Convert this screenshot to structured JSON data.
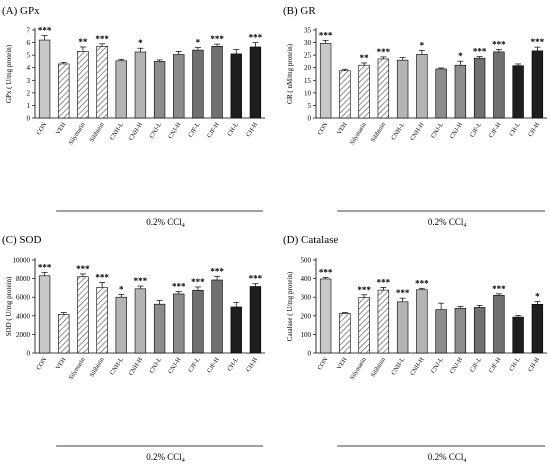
{
  "figure_caption": "0.2% CCl",
  "caption_subscript": "4",
  "chart_data": [
    {
      "type": "bar",
      "panel_label": "(A) GPx",
      "ylabel": "GPx ( U/mg protein)",
      "ylim": [
        0,
        7
      ],
      "yticks": [
        0,
        1,
        2,
        3,
        4,
        5,
        6,
        7
      ],
      "categories": [
        "CON",
        "VEH",
        "Silymarin",
        "Silibinin",
        "CNH-L",
        "CNH-H",
        "CNJ-L",
        "CNJ-H",
        "CJF-L",
        "CJF-H",
        "CH-L",
        "CH-H"
      ],
      "values": [
        6.2,
        4.3,
        5.3,
        5.7,
        4.55,
        5.25,
        4.5,
        5.05,
        5.4,
        5.7,
        5.1,
        5.65
      ],
      "errors": [
        0.35,
        0.12,
        0.35,
        0.2,
        0.12,
        0.3,
        0.12,
        0.25,
        0.2,
        0.18,
        0.35,
        0.35
      ],
      "significance": [
        "***",
        "",
        "**",
        "***",
        "",
        "*",
        "",
        "",
        "*",
        "***",
        "",
        "***"
      ],
      "group_label": "0.2% CCl"
    },
    {
      "type": "bar",
      "panel_label": "(B) GR",
      "ylabel": "GR ( nM/mg protein)",
      "ylim": [
        0,
        35
      ],
      "yticks": [
        0,
        5,
        10,
        15,
        20,
        25,
        30,
        35
      ],
      "categories": [
        "CON",
        "VEH",
        "Silymarin",
        "Silibinin",
        "CNH-L",
        "CNH-H",
        "CNJ-L",
        "CNJ-H",
        "CJF-L",
        "CJF-H",
        "CH-L",
        "CH-H"
      ],
      "values": [
        29.7,
        18.8,
        21.0,
        23.5,
        23.0,
        25.3,
        19.5,
        21.0,
        23.8,
        26.3,
        20.8,
        26.7
      ],
      "errors": [
        1.2,
        0.6,
        0.9,
        0.8,
        1.0,
        1.6,
        0.4,
        1.6,
        0.6,
        0.9,
        0.7,
        1.5
      ],
      "significance": [
        "***",
        "",
        "**",
        "***",
        "",
        "*",
        "",
        "*",
        "***",
        "***",
        "",
        "***"
      ],
      "group_label": "0.2% CCl"
    },
    {
      "type": "bar",
      "panel_label": "(C) SOD",
      "ylabel": "SOD ( U/mg protein)",
      "ylim": [
        0,
        10000
      ],
      "yticks": [
        0,
        2000,
        4000,
        6000,
        8000,
        10000
      ],
      "categories": [
        "CON",
        "VEH",
        "Silymarin",
        "Silibinin",
        "CNH-L",
        "CNH-H",
        "CNJ-L",
        "CNJ-H",
        "CJF-L",
        "CJF-H",
        "CH-L",
        "CH-H"
      ],
      "values": [
        8300,
        4150,
        8200,
        7050,
        6000,
        6900,
        5250,
        6350,
        6750,
        7850,
        4950,
        7150
      ],
      "errors": [
        350,
        200,
        300,
        550,
        300,
        300,
        400,
        250,
        350,
        400,
        500,
        300
      ],
      "significance": [
        "***",
        "",
        "***",
        "***",
        "*",
        "***",
        "",
        "***",
        "***",
        "***",
        "",
        "***"
      ],
      "group_label": "0.2% CCl"
    },
    {
      "type": "bar",
      "panel_label": "(D) Catalase",
      "ylabel": "Catalase ( U/mg protein)",
      "ylim": [
        0,
        500
      ],
      "yticks": [
        0,
        100,
        200,
        300,
        400,
        500
      ],
      "categories": [
        "CON",
        "VEH",
        "Silymarin",
        "Silibinin",
        "CNH-L",
        "CNH-H",
        "CNJ-L",
        "CNJ-H",
        "CJF-L",
        "CJF-H",
        "CH-L",
        "CH-H"
      ],
      "values": [
        398,
        213,
        298,
        338,
        275,
        340,
        233,
        240,
        245,
        310,
        193,
        262
      ],
      "errors": [
        8,
        5,
        15,
        15,
        20,
        8,
        35,
        10,
        10,
        8,
        8,
        15
      ],
      "significance": [
        "***",
        "",
        "***",
        "***",
        "***",
        "***",
        "",
        "",
        "",
        "***",
        "",
        "*"
      ],
      "group_label": "0.2% CCl"
    }
  ],
  "bar_styles": [
    {
      "fill": "#c8c8c8",
      "pattern": "none"
    },
    {
      "fill": "#ffffff",
      "pattern": "diag"
    },
    {
      "fill": "#ffffff",
      "pattern": "diag"
    },
    {
      "fill": "#ffffff",
      "pattern": "diag"
    },
    {
      "fill": "#b4b4b4",
      "pattern": "none"
    },
    {
      "fill": "#b4b4b4",
      "pattern": "none"
    },
    {
      "fill": "#8c8c8c",
      "pattern": "none"
    },
    {
      "fill": "#8c8c8c",
      "pattern": "none"
    },
    {
      "fill": "#707070",
      "pattern": "none"
    },
    {
      "fill": "#707070",
      "pattern": "none"
    },
    {
      "fill": "#1e1e1e",
      "pattern": "none"
    },
    {
      "fill": "#1e1e1e",
      "pattern": "none"
    }
  ]
}
